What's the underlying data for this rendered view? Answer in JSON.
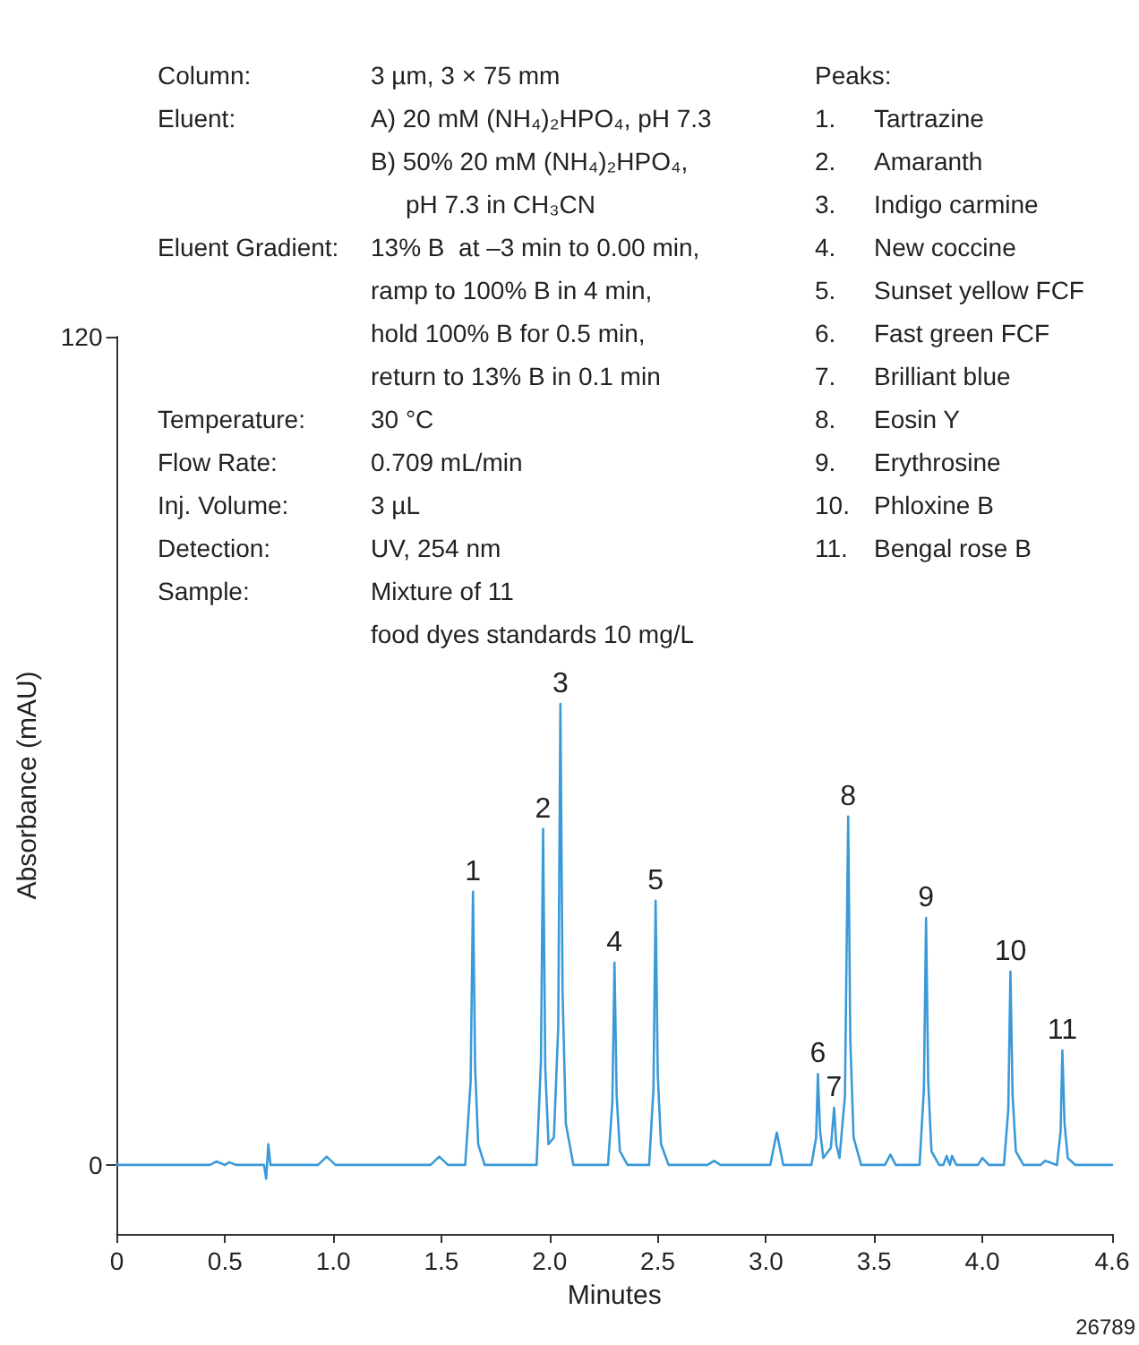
{
  "chart_data": {
    "type": "line",
    "xlabel": "Minutes",
    "ylabel": "Absorbance (mAU)",
    "x": [
      0,
      0.3,
      0.43,
      0.46,
      0.5,
      0.52,
      0.55,
      0.68,
      0.69,
      0.7,
      0.71,
      0.73,
      0.93,
      0.97,
      1.01,
      1.45,
      1.49,
      1.53,
      1.61,
      1.635,
      1.646,
      1.656,
      1.67,
      1.7,
      1.94,
      1.96,
      1.97,
      1.98,
      1.995,
      2.02,
      2.04,
      2.05,
      2.06,
      2.075,
      2.11,
      2.27,
      2.29,
      2.3,
      2.31,
      2.325,
      2.36,
      2.46,
      2.48,
      2.49,
      2.5,
      2.515,
      2.55,
      2.73,
      2.76,
      2.79,
      3.02,
      3.05,
      3.08,
      3.21,
      3.232,
      3.24,
      3.25,
      3.265,
      3.3,
      3.315,
      3.325,
      3.34,
      3.365,
      3.38,
      3.39,
      3.405,
      3.44,
      3.55,
      3.575,
      3.6,
      3.71,
      3.73,
      3.74,
      3.75,
      3.765,
      3.8,
      3.82,
      3.835,
      3.85,
      3.86,
      3.88,
      3.98,
      4.0,
      4.03,
      4.1,
      4.12,
      4.13,
      4.14,
      4.155,
      4.19,
      4.27,
      4.29,
      4.345,
      4.362,
      4.37,
      4.38,
      4.395,
      4.43,
      4.6
    ],
    "values": [
      0,
      0,
      0,
      0.5,
      0,
      0.4,
      0,
      0,
      -2,
      3,
      0,
      0,
      0,
      1.2,
      0,
      0,
      1.2,
      0,
      0,
      12,
      39.6,
      14,
      3,
      0,
      0,
      15,
      48.7,
      14,
      3,
      4,
      20,
      66.8,
      25,
      6,
      0,
      0,
      9,
      29.3,
      10,
      2,
      0,
      0,
      11,
      38.3,
      13,
      3,
      0,
      0,
      0.6,
      0,
      0,
      4.7,
      0,
      0,
      4,
      13.2,
      5,
      1,
      2.5,
      8.3,
      3,
      1,
      10,
      50.5,
      18,
      4,
      0,
      0,
      1.5,
      0,
      0,
      11,
      35.8,
      12,
      2,
      0,
      0,
      1.3,
      0,
      1.3,
      0,
      0,
      1,
      0,
      0,
      8,
      28,
      10,
      2,
      0,
      0,
      0.6,
      0,
      5,
      16.6,
      6,
      1,
      0,
      0
    ],
    "color": "#3a9ad9",
    "marker": "none",
    "xlim": [
      0,
      4.6
    ],
    "xticks": [
      0,
      0.5,
      {
        "value": 1,
        "label": "1.0"
      },
      1.5,
      {
        "value": 2,
        "label": "2.0"
      },
      2.5,
      {
        "value": 3,
        "label": "3.0"
      },
      3.5,
      {
        "value": 4,
        "label": "4.0"
      },
      4.6
    ],
    "ylim": [
      -10,
      120
    ],
    "yticks": [
      0,
      120
    ],
    "annotations": [
      "Column:\nEluent:\n\n\nEluent Gradient:\n\n\n\nTemperature:\nFlow Rate:\nInj. Volume:\nDetection:\nSample:",
      "3 µm, 3 × 75 mm\nA) 20 mM (NH₄)₂HPO₄, pH 7.3\nB) 50% 20 mM (NH₄)₂HPO₄,\n     pH 7.3 in CH₃CN\n13% B  at –3 min to 0.00 min,\nramp to 100% B in 4 min,\nhold 100% B for 0.5 min,\nreturn to 13% B in 0.1 min\n30 °C\n0.709 mL/min\n3 µL\nUV, 254 nm\nMixture of 11\nfood dyes standards 10 mg/L",
      "Peaks:\n1.\tTartrazine\n2.\tAmaranth\n3.\tIndigo carmine\n4.\tNew coccine\n5.\tSunset yellow FCF\n6.\tFast green FCF\n7.\tBrilliant blue\n8.\tEosin Y\n9.\tErythrosine\n10.\tPhloxine B\n11.\tBengal rose B",
      {
        "text": "1",
        "x": 1.646,
        "y": 39.6
      },
      {
        "text": "2",
        "x": 1.97,
        "y": 48.7
      },
      {
        "text": "3",
        "x": 2.05,
        "y": 66.8
      },
      {
        "text": "4",
        "x": 2.3,
        "y": 29.3
      },
      {
        "text": "5",
        "x": 2.49,
        "y": 38.3
      },
      {
        "text": "6",
        "x": 3.24,
        "y": 13.2
      },
      {
        "text": "7",
        "x": 3.315,
        "y": 8.3
      },
      {
        "text": "8",
        "x": 3.38,
        "y": 50.5
      },
      {
        "text": "9",
        "x": 3.74,
        "y": 35.8
      },
      {
        "text": "10",
        "x": 4.13,
        "y": 28
      },
      {
        "text": "11",
        "x": 4.37,
        "y": 16.6
      },
      "26789"
    ]
  }
}
